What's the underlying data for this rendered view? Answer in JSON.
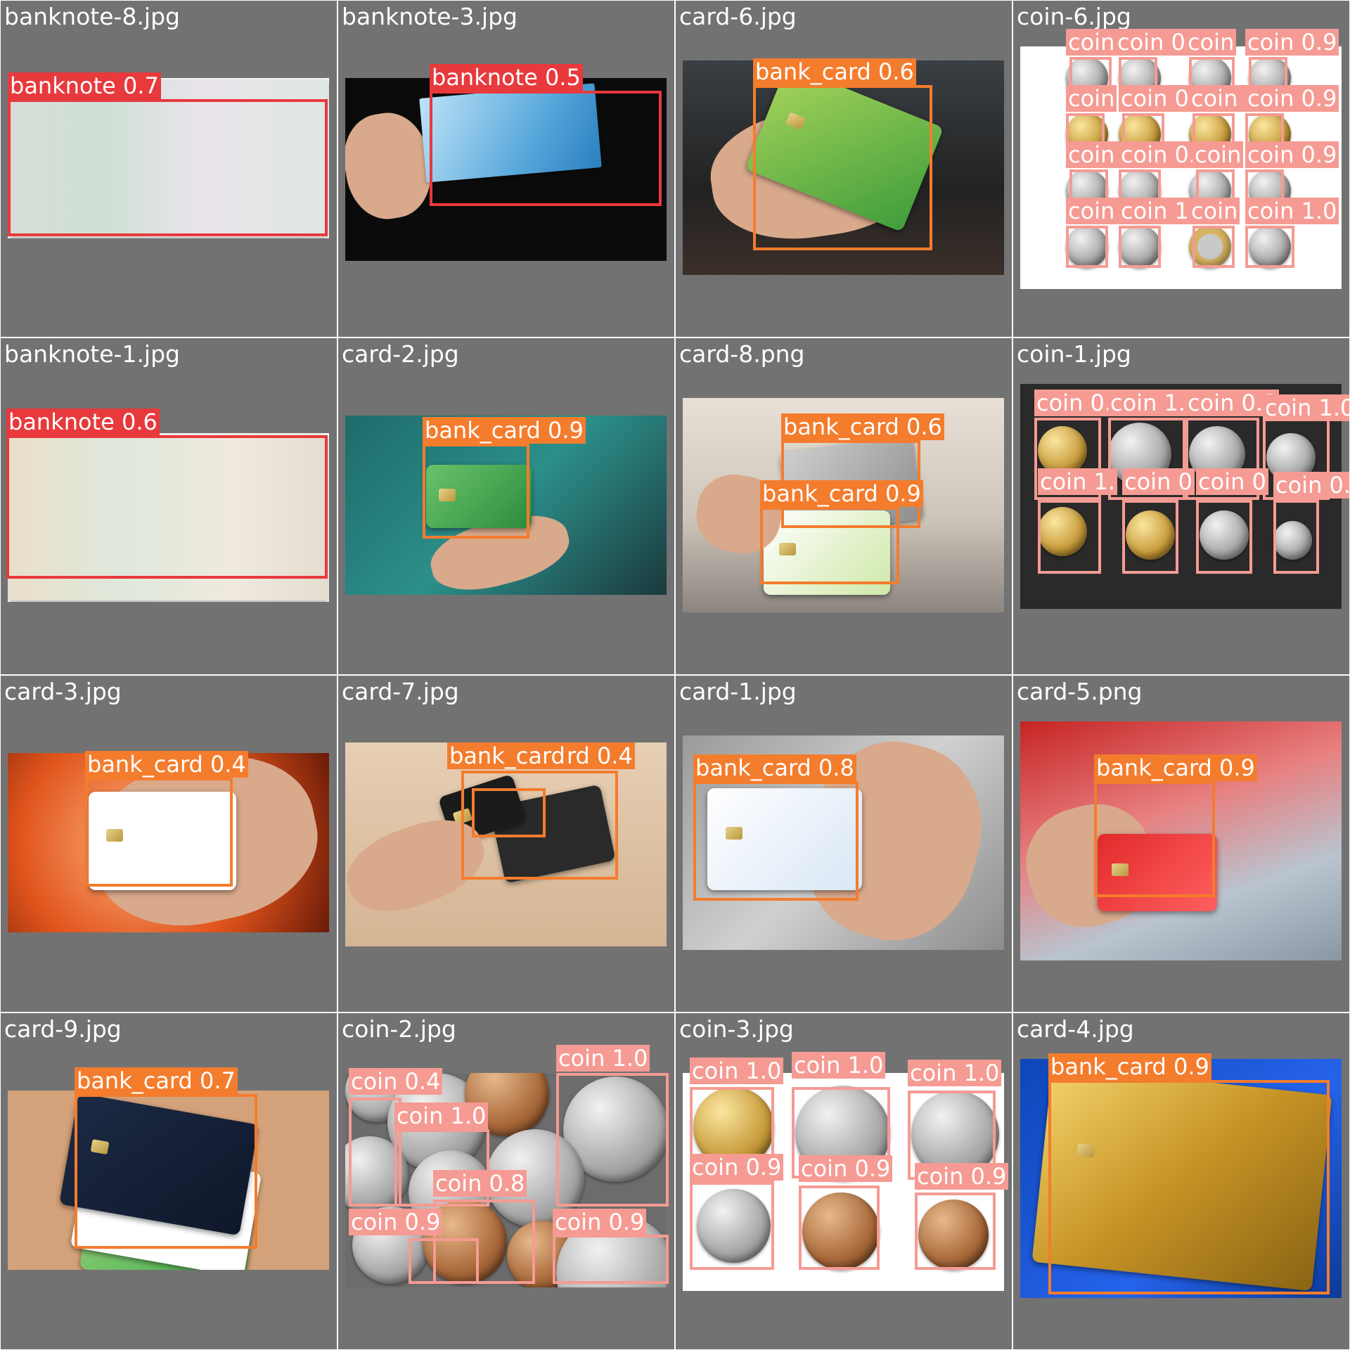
{
  "colors": {
    "tile_bg": "#727272",
    "banknote": "#e8393c",
    "bank_card": "#f47c2d",
    "coin": "#f59b93"
  },
  "tiles": [
    {
      "title": "banknote-8.jpg",
      "scene": "banknote-1000",
      "detections": [
        {
          "class": "banknote",
          "score": "0.7"
        }
      ]
    },
    {
      "title": "banknote-3.jpg",
      "scene": "banknote-2000-hand",
      "detections": [
        {
          "class": "banknote",
          "score": "0.5"
        }
      ]
    },
    {
      "title": "card-6.jpg",
      "scene": "green-card-hand",
      "detections": [
        {
          "class": "bank_card",
          "score": "0.6"
        }
      ]
    },
    {
      "title": "coin-6.jpg",
      "scene": "coin-grid-white",
      "detections": [
        {
          "class": "coin",
          "score": ""
        },
        {
          "class": "coin",
          "score": "0."
        },
        {
          "class": "coin",
          "score": ""
        },
        {
          "class": "coin",
          "score": "0.9"
        },
        {
          "class": "coin",
          "score": ""
        },
        {
          "class": "coin",
          "score": "0.9"
        },
        {
          "class": "coin",
          "score": "0.9"
        },
        {
          "class": "coin",
          "score": "0.9"
        },
        {
          "class": "coin",
          "score": "0.9"
        },
        {
          "class": "coin",
          "score": "0."
        },
        {
          "class": "coin",
          "score": ""
        },
        {
          "class": "coin",
          "score": "0.9"
        },
        {
          "class": "coin",
          "score": "0.9"
        },
        {
          "class": "coin",
          "score": "1.0"
        },
        {
          "class": "coin",
          "score": ""
        },
        {
          "class": "coin",
          "score": "1.0"
        }
      ]
    },
    {
      "title": "banknote-1.jpg",
      "scene": "banknote-5",
      "detections": [
        {
          "class": "banknote",
          "score": "0.6"
        }
      ]
    },
    {
      "title": "card-2.jpg",
      "scene": "atm-green-card",
      "detections": [
        {
          "class": "bank_card",
          "score": "0.9"
        }
      ]
    },
    {
      "title": "card-8.png",
      "scene": "two-cards-office",
      "detections": [
        {
          "class": "bank_card",
          "score": "0.6"
        },
        {
          "class": "bank_card",
          "score": "0.9"
        }
      ]
    },
    {
      "title": "coin-1.jpg",
      "scene": "coins-dark",
      "detections": [
        {
          "class": "coin",
          "score": "0.9"
        },
        {
          "class": "coin",
          "score": "1."
        },
        {
          "class": "coin",
          "score": "0.9"
        },
        {
          "class": "coin",
          "score": "1.0"
        },
        {
          "class": "coin",
          "score": "1."
        },
        {
          "class": "coin",
          "score": "0"
        },
        {
          "class": "coin",
          "score": "0"
        },
        {
          "class": "coin",
          "score": "0."
        }
      ]
    },
    {
      "title": "card-3.jpg",
      "scene": "card-orange-glow",
      "detections": [
        {
          "class": "bank_card",
          "score": "0.4"
        }
      ]
    },
    {
      "title": "card-7.jpg",
      "scene": "card-terminal",
      "detections": [
        {
          "class": "bank_card",
          "score": "0.4"
        },
        {
          "class": "bank_card",
          "score": ""
        }
      ]
    },
    {
      "title": "card-1.jpg",
      "scene": "card-crimea",
      "detections": [
        {
          "class": "bank_card",
          "score": "0.8"
        }
      ]
    },
    {
      "title": "card-5.png",
      "scene": "red-card-street",
      "detections": [
        {
          "class": "bank_card",
          "score": "0.9"
        }
      ]
    },
    {
      "title": "card-9.jpg",
      "scene": "stacked-cards",
      "detections": [
        {
          "class": "bank_card",
          "score": "0.7"
        }
      ]
    },
    {
      "title": "coin-2.jpg",
      "scene": "coin-pile",
      "detections": [
        {
          "class": "coin",
          "score": "0.4"
        },
        {
          "class": "coin",
          "score": "1.0"
        },
        {
          "class": "coin",
          "score": "1.0"
        },
        {
          "class": "coin",
          "score": "0.8"
        },
        {
          "class": "coin",
          "score": "0.9"
        },
        {
          "class": "coin",
          "score": "0.9"
        }
      ]
    },
    {
      "title": "coin-3.jpg",
      "scene": "six-coins-white",
      "detections": [
        {
          "class": "coin",
          "score": "1.0"
        },
        {
          "class": "coin",
          "score": "1.0"
        },
        {
          "class": "coin",
          "score": "1.0"
        },
        {
          "class": "coin",
          "score": "0.9"
        },
        {
          "class": "coin",
          "score": "0.9"
        },
        {
          "class": "coin",
          "score": "0.9"
        }
      ]
    },
    {
      "title": "card-4.jpg",
      "scene": "gold-card-blue",
      "detections": [
        {
          "class": "bank_card",
          "score": "0.9"
        }
      ]
    }
  ]
}
